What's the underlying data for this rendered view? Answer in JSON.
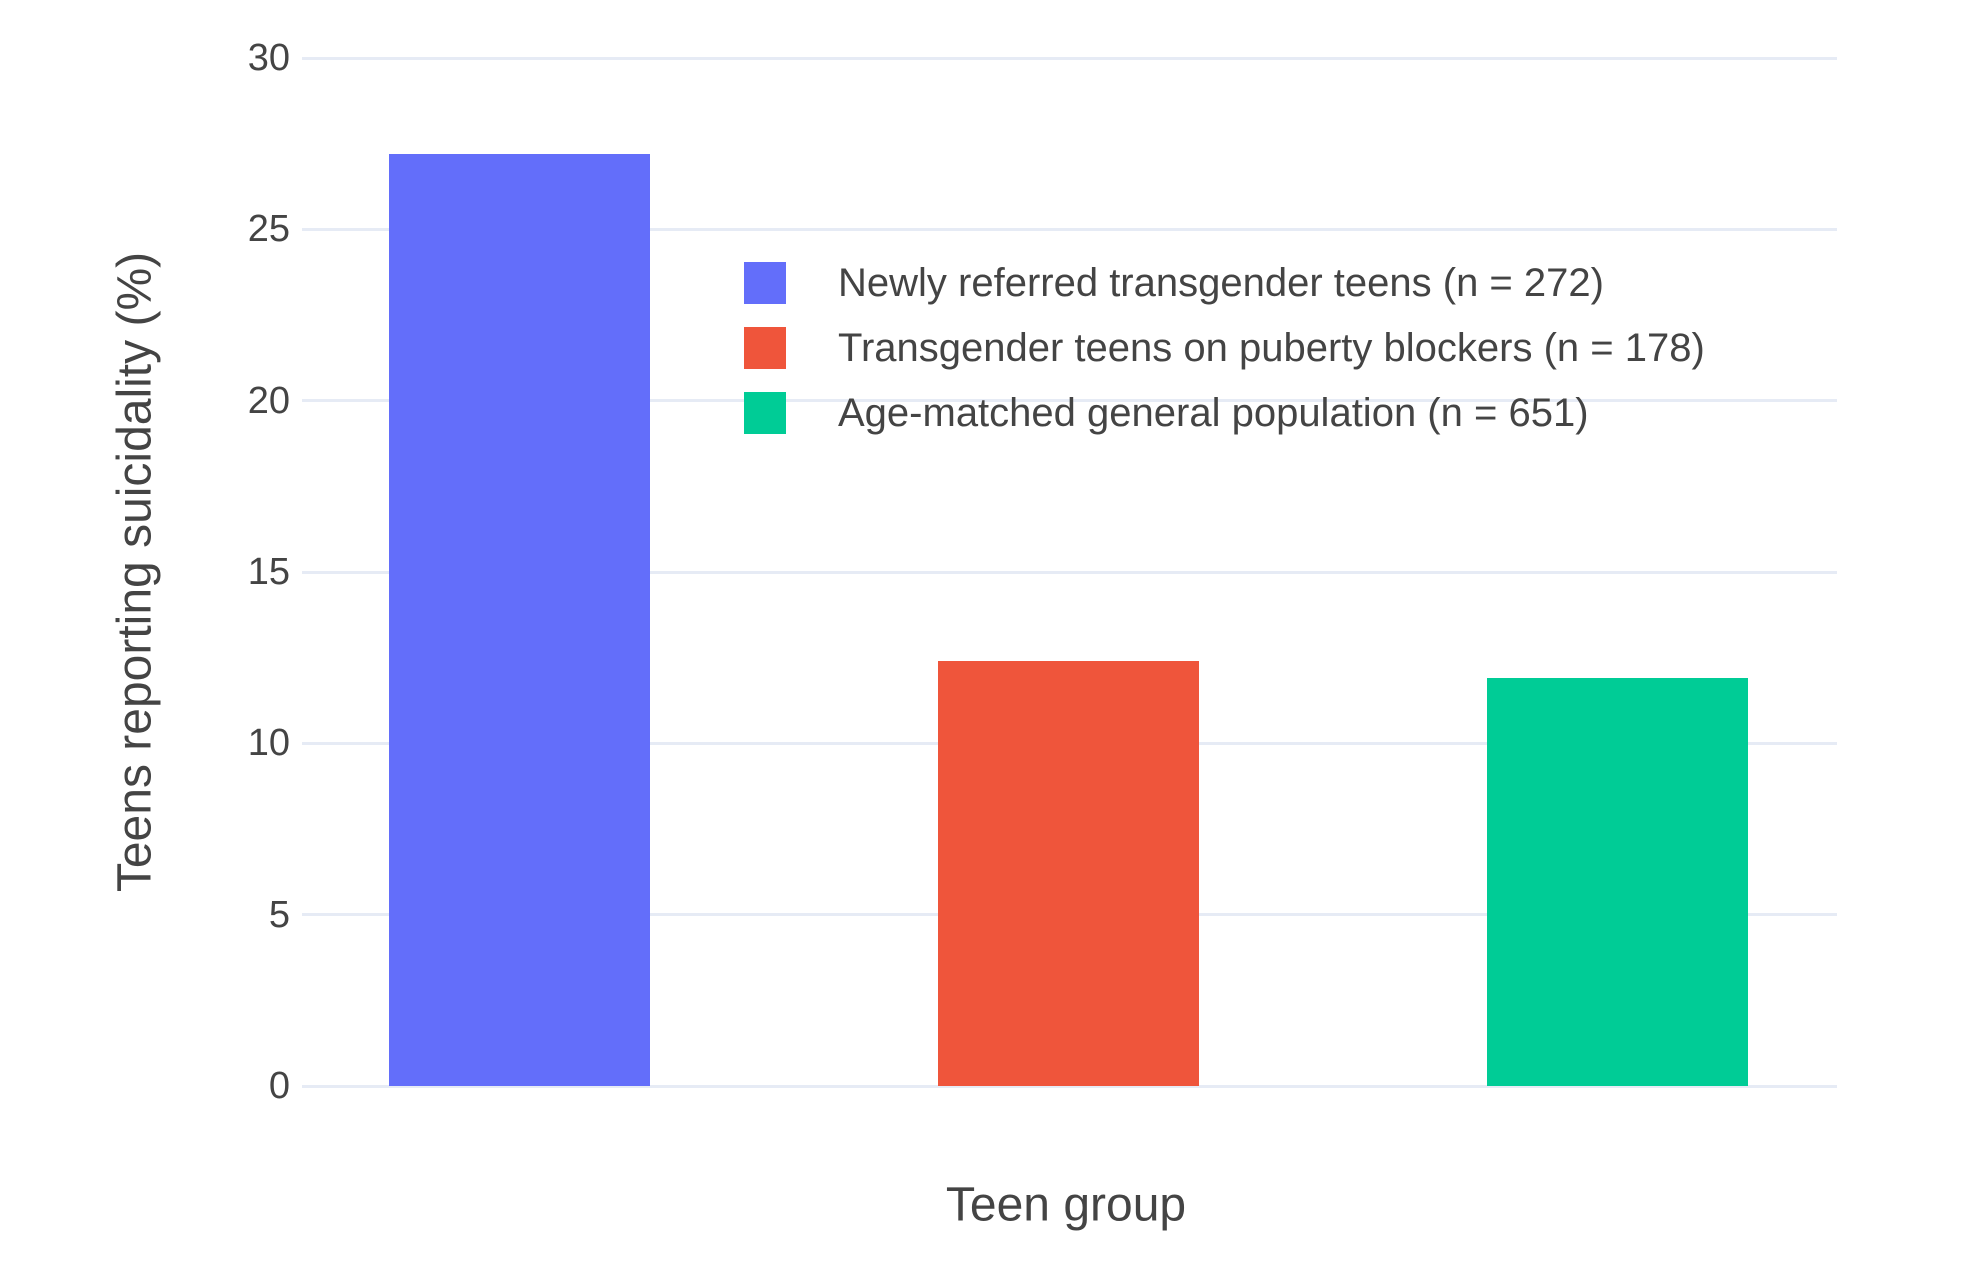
{
  "chart_data": {
    "type": "bar",
    "title": "",
    "xlabel": "Teen group",
    "ylabel": "Teens reporting suicidality (%)",
    "series": [
      {
        "name": "Newly referred transgender teens (n = 272)",
        "value": 27.2,
        "color": "#636EFA"
      },
      {
        "name": "Transgender teens on puberty blockers (n = 178)",
        "value": 12.4,
        "color": "#EF553B"
      },
      {
        "name": "Age-matched general population (n = 651)",
        "value": 11.9,
        "color": "#00CC96"
      }
    ],
    "yticks": [
      0,
      5,
      10,
      15,
      20,
      25,
      30
    ],
    "ylim": [
      0,
      30.3
    ],
    "grid": true,
    "legend_position": "inside-top-left",
    "background_color": "#FFFFFF",
    "gridline_color": "#E6EBF5",
    "text_color": "#444444"
  }
}
